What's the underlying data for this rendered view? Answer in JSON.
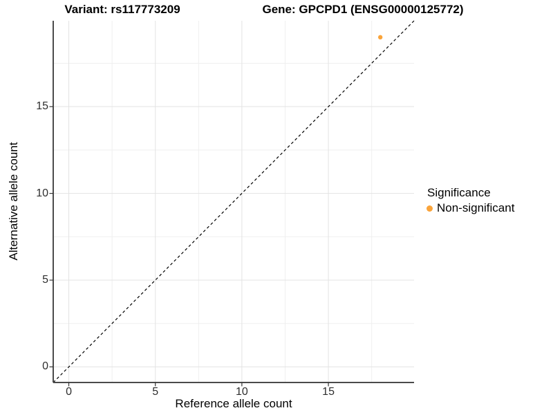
{
  "titles": {
    "variant": "Variant: rs117773209",
    "gene": "Gene: GPCPD1 (ENSG00000125772)"
  },
  "chart_data": {
    "type": "scatter",
    "xlabel": "Reference allele count",
    "ylabel": "Alternative allele count",
    "xlim": [
      -0.9,
      19.95
    ],
    "ylim": [
      -0.9,
      19.95
    ],
    "xticks": [
      0,
      5,
      10,
      15
    ],
    "yticks": [
      0,
      5,
      10,
      15
    ],
    "x_minor_ticks": [
      2.5,
      7.5,
      12.5,
      17.5
    ],
    "y_minor_ticks": [
      2.5,
      7.5,
      12.5,
      17.5
    ],
    "grid": true,
    "identity_line": {
      "slope": 1,
      "intercept": 0,
      "style": "dashed",
      "color": "#000000"
    },
    "series": [
      {
        "name": "Non-significant",
        "color": "#FAA43A",
        "point_radius": 3.2,
        "points": [
          {
            "x": 18,
            "y": 19
          }
        ]
      }
    ],
    "legend": {
      "title": "Significance",
      "position": "right",
      "items": [
        {
          "label": "Non-significant",
          "color": "#FAA43A"
        }
      ]
    },
    "colors": {
      "grid_major": "#E3E3E3",
      "grid_minor": "#EFEFEF",
      "axis_line": "#4A4A4A",
      "tick_mark": "#333333"
    }
  }
}
